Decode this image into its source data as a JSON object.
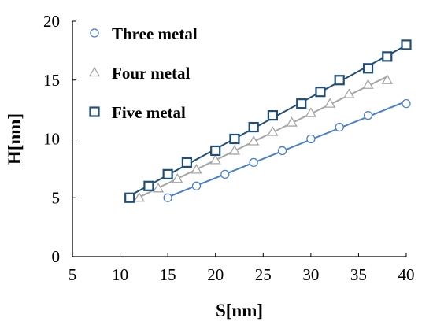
{
  "chart_data": {
    "type": "scatter",
    "title": "",
    "xlabel": "S[nm]",
    "ylabel": "H[nm]",
    "xlim": [
      5,
      40
    ],
    "ylim": [
      0,
      20
    ],
    "xticks": [
      5,
      10,
      15,
      20,
      25,
      30,
      35,
      40
    ],
    "yticks": [
      0,
      5,
      10,
      15,
      20
    ],
    "grid": false,
    "legend": "top-left",
    "series": [
      {
        "name": "Three metal",
        "marker": "circle",
        "color": "#4a80d0",
        "x": [
          15,
          18,
          21,
          24,
          27,
          30,
          33,
          36,
          40
        ],
        "y": [
          5,
          6,
          7,
          8,
          9,
          10,
          11,
          12,
          13
        ]
      },
      {
        "name": "Four metal",
        "marker": "triangle",
        "color": "#a6a6a6",
        "x": [
          12,
          14,
          16,
          18,
          20,
          22,
          24,
          26,
          28,
          30,
          32,
          34,
          36,
          38
        ],
        "y": [
          5,
          5.8,
          6.6,
          7.4,
          8.2,
          9,
          9.8,
          10.6,
          11.4,
          12.2,
          13,
          13.8,
          14.6,
          15
        ]
      },
      {
        "name": "Five metal",
        "marker": "square",
        "color": "#1f4e79",
        "x": [
          11,
          13,
          15,
          17,
          20,
          22,
          24,
          26,
          29,
          31,
          33,
          36,
          38,
          40
        ],
        "y": [
          5,
          6,
          7,
          8,
          9,
          10,
          11,
          12,
          13,
          14,
          15,
          16,
          17,
          18
        ]
      }
    ]
  }
}
